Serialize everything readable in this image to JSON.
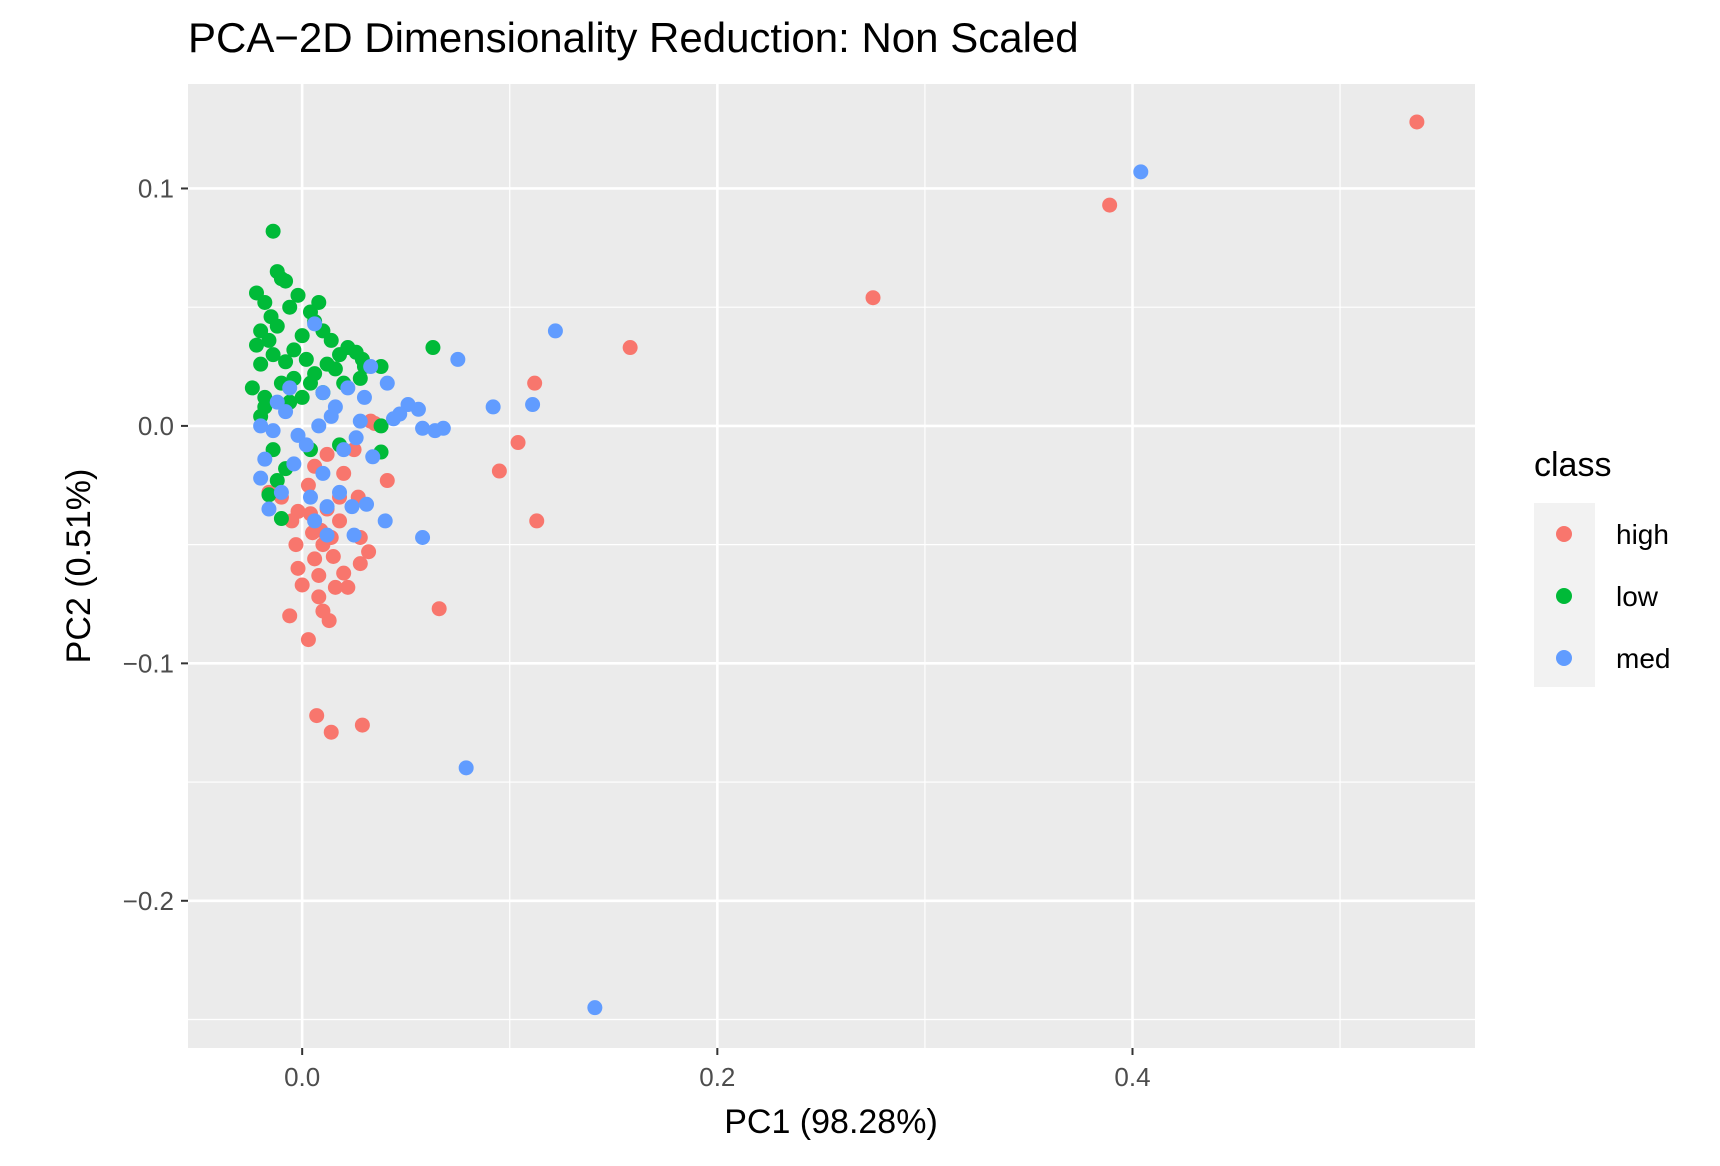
{
  "chart_data": {
    "type": "scatter",
    "title": "PCA−2D Dimensionality Reduction: Non Scaled",
    "xlabel": "PC1 (98.28%)",
    "ylabel": "PC2 (0.51%)",
    "xlim": [
      -0.055,
      0.565
    ],
    "ylim": [
      -0.262,
      0.144
    ],
    "xticks": [
      0.0,
      0.2,
      0.4
    ],
    "xtick_labels": [
      "0.0",
      "0.2",
      "0.4"
    ],
    "yticks": [
      0.1,
      0.0,
      -0.1,
      -0.2
    ],
    "ytick_labels": [
      "0.1",
      "0.0",
      "−0.1",
      "−0.2"
    ],
    "grid": true,
    "legend": {
      "title": "class",
      "position": "right"
    },
    "series": [
      {
        "name": "high",
        "color": "#F8766D",
        "points": [
          [
            0.537,
            0.128
          ],
          [
            0.389,
            0.093
          ],
          [
            0.275,
            0.054
          ],
          [
            0.158,
            0.033
          ],
          [
            0.112,
            0.018
          ],
          [
            0.113,
            -0.04
          ],
          [
            0.104,
            -0.007
          ],
          [
            0.095,
            -0.019
          ],
          [
            0.066,
            -0.077
          ],
          [
            0.041,
            -0.023
          ],
          [
            0.035,
            0.001
          ],
          [
            0.033,
            0.002
          ],
          [
            0.032,
            -0.053
          ],
          [
            0.028,
            -0.058
          ],
          [
            0.028,
            -0.047
          ],
          [
            0.027,
            -0.03
          ],
          [
            0.022,
            -0.068
          ],
          [
            0.02,
            -0.062
          ],
          [
            0.016,
            -0.068
          ],
          [
            0.013,
            -0.082
          ],
          [
            0.01,
            -0.078
          ],
          [
            0.008,
            -0.072
          ],
          [
            0.008,
            -0.063
          ],
          [
            0.006,
            -0.056
          ],
          [
            0.005,
            -0.045
          ],
          [
            0.003,
            -0.09
          ],
          [
            0.0,
            -0.067
          ],
          [
            -0.002,
            -0.06
          ],
          [
            -0.003,
            -0.05
          ],
          [
            -0.006,
            -0.08
          ],
          [
            -0.005,
            -0.04
          ],
          [
            -0.01,
            -0.03
          ],
          [
            -0.016,
            -0.028
          ],
          [
            0.003,
            -0.025
          ],
          [
            0.012,
            -0.035
          ],
          [
            0.018,
            -0.04
          ],
          [
            0.015,
            -0.055
          ],
          [
            0.01,
            -0.05
          ],
          [
            0.02,
            -0.02
          ],
          [
            0.025,
            -0.01
          ],
          [
            0.012,
            -0.012
          ],
          [
            0.006,
            -0.017
          ],
          [
            0.018,
            -0.03
          ],
          [
            0.004,
            -0.037
          ],
          [
            0.009,
            -0.044
          ],
          [
            0.014,
            -0.047
          ],
          [
            -0.002,
            -0.036
          ],
          [
            0.007,
            -0.122
          ],
          [
            0.014,
            -0.129
          ],
          [
            0.029,
            -0.126
          ]
        ]
      },
      {
        "name": "low",
        "color": "#00BA38",
        "points": [
          [
            -0.014,
            0.082
          ],
          [
            -0.012,
            0.065
          ],
          [
            -0.01,
            0.062
          ],
          [
            -0.022,
            0.056
          ],
          [
            -0.018,
            0.052
          ],
          [
            -0.008,
            0.061
          ],
          [
            -0.015,
            0.046
          ],
          [
            -0.02,
            0.04
          ],
          [
            -0.016,
            0.036
          ],
          [
            -0.022,
            0.034
          ],
          [
            -0.012,
            0.042
          ],
          [
            -0.006,
            0.05
          ],
          [
            -0.002,
            0.055
          ],
          [
            0.004,
            0.048
          ],
          [
            0.008,
            0.052
          ],
          [
            0.006,
            0.044
          ],
          [
            0.0,
            0.038
          ],
          [
            -0.004,
            0.032
          ],
          [
            0.01,
            0.04
          ],
          [
            0.014,
            0.036
          ],
          [
            0.018,
            0.03
          ],
          [
            0.022,
            0.033
          ],
          [
            0.026,
            0.031
          ],
          [
            0.029,
            0.028
          ],
          [
            0.03,
            0.025
          ],
          [
            0.038,
            0.025
          ],
          [
            0.063,
            0.033
          ],
          [
            0.016,
            0.024
          ],
          [
            0.012,
            0.026
          ],
          [
            0.002,
            0.028
          ],
          [
            -0.008,
            0.027
          ],
          [
            -0.014,
            0.03
          ],
          [
            -0.02,
            0.026
          ],
          [
            -0.024,
            0.016
          ],
          [
            -0.018,
            0.012
          ],
          [
            -0.01,
            0.018
          ],
          [
            -0.004,
            0.02
          ],
          [
            0.004,
            0.018
          ],
          [
            0.01,
            0.014
          ],
          [
            0.02,
            0.018
          ],
          [
            0.028,
            0.02
          ],
          [
            0.038,
            0.0
          ],
          [
            0.038,
            -0.011
          ],
          [
            0.018,
            -0.008
          ],
          [
            0.004,
            -0.01
          ],
          [
            -0.008,
            -0.018
          ],
          [
            -0.014,
            -0.01
          ],
          [
            -0.01,
            -0.039
          ],
          [
            -0.016,
            -0.029
          ],
          [
            -0.012,
            -0.023
          ],
          [
            -0.018,
            0.008
          ],
          [
            -0.006,
            0.01
          ],
          [
            0.006,
            0.022
          ],
          [
            0.0,
            0.012
          ],
          [
            -0.02,
            0.004
          ]
        ]
      },
      {
        "name": "med",
        "color": "#619CFF",
        "points": [
          [
            0.404,
            0.107
          ],
          [
            0.122,
            0.04
          ],
          [
            0.075,
            0.028
          ],
          [
            0.111,
            0.009
          ],
          [
            0.092,
            0.008
          ],
          [
            0.068,
            -0.001
          ],
          [
            0.064,
            -0.002
          ],
          [
            0.058,
            -0.001
          ],
          [
            0.056,
            0.007
          ],
          [
            0.051,
            0.009
          ],
          [
            0.047,
            0.005
          ],
          [
            0.044,
            0.003
          ],
          [
            0.041,
            0.018
          ],
          [
            0.033,
            0.025
          ],
          [
            0.03,
            0.012
          ],
          [
            0.028,
            0.002
          ],
          [
            0.026,
            -0.005
          ],
          [
            0.034,
            -0.013
          ],
          [
            0.04,
            -0.04
          ],
          [
            0.058,
            -0.047
          ],
          [
            0.031,
            -0.033
          ],
          [
            0.025,
            -0.046
          ],
          [
            0.079,
            -0.144
          ],
          [
            0.141,
            -0.245
          ],
          [
            0.02,
            -0.01
          ],
          [
            0.014,
            0.004
          ],
          [
            0.01,
            0.014
          ],
          [
            0.006,
            0.043
          ],
          [
            0.01,
            -0.02
          ],
          [
            0.004,
            -0.03
          ],
          [
            -0.002,
            -0.004
          ],
          [
            -0.008,
            0.006
          ],
          [
            -0.014,
            -0.002
          ],
          [
            -0.018,
            -0.014
          ],
          [
            -0.02,
            -0.022
          ],
          [
            -0.016,
            -0.035
          ],
          [
            -0.01,
            -0.028
          ],
          [
            -0.004,
            -0.016
          ],
          [
            0.002,
            -0.008
          ],
          [
            0.008,
            0.0
          ],
          [
            0.016,
            0.008
          ],
          [
            0.022,
            0.016
          ],
          [
            0.018,
            -0.028
          ],
          [
            0.012,
            -0.034
          ],
          [
            0.006,
            -0.04
          ],
          [
            -0.006,
            0.016
          ],
          [
            -0.012,
            0.01
          ],
          [
            -0.02,
            0.0
          ],
          [
            0.012,
            -0.046
          ],
          [
            0.024,
            -0.034
          ]
        ]
      }
    ]
  }
}
